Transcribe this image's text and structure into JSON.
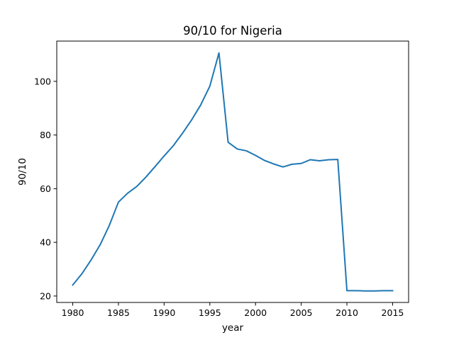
{
  "chart_data": {
    "type": "line",
    "title": "90/10 for Nigeria",
    "xlabel": "year",
    "ylabel": "90/10",
    "xlim": [
      1978.25,
      2016.75
    ],
    "ylim": [
      17.6,
      115.0
    ],
    "xticks": [
      1980,
      1985,
      1990,
      1995,
      2000,
      2005,
      2010,
      2015
    ],
    "yticks": [
      20,
      40,
      60,
      80,
      100
    ],
    "grid": false,
    "series": [
      {
        "color": "#1f77b4",
        "x": [
          1980,
          1981,
          1982,
          1983,
          1984,
          1985,
          1986,
          1987,
          1988,
          1989,
          1990,
          1991,
          1992,
          1993,
          1994,
          1995,
          1996,
          1997,
          1998,
          1999,
          2000,
          2001,
          2002,
          2003,
          2004,
          2005,
          2006,
          2007,
          2008,
          2009,
          2010,
          2011,
          2012,
          2013,
          2014,
          2015
        ],
        "y": [
          24.1,
          28.3,
          33.4,
          39.1,
          46.3,
          55.0,
          58.3,
          60.8,
          64.3,
          68.2,
          72.2,
          76.0,
          80.6,
          85.6,
          91.2,
          98.2,
          110.6,
          77.3,
          74.8,
          74.1,
          72.4,
          70.5,
          69.2,
          68.1,
          69.1,
          69.4,
          70.8,
          70.4,
          70.8,
          70.9,
          22.0,
          22.0,
          21.9,
          21.9,
          22.0,
          22.0
        ]
      }
    ]
  }
}
